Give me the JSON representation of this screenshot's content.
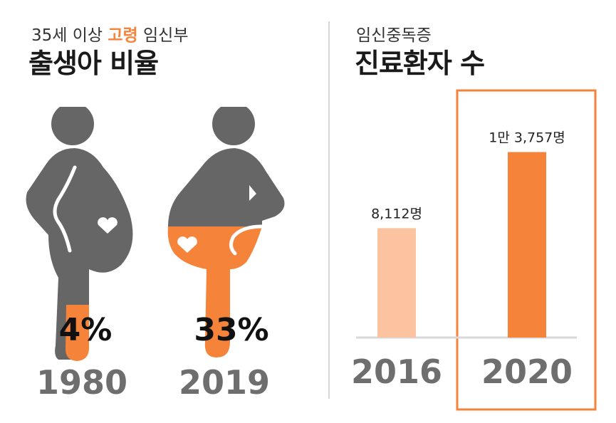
{
  "left": {
    "subtitle_pre": "35세 이상 ",
    "subtitle_hl": "고령",
    "subtitle_post": " 임신부",
    "title": "출생아 비율",
    "figures": [
      {
        "year": "1980",
        "percent_label": "4%",
        "percent": 4
      },
      {
        "year": "2019",
        "percent_label": "33%",
        "percent": 33
      }
    ]
  },
  "right": {
    "subtitle": "임신중독증",
    "title": "진료환자 수"
  },
  "colors": {
    "accent": "#f5833a",
    "light": "#fbc3a0",
    "figure": "#666666"
  },
  "chart_data": {
    "type": "bar",
    "categories": [
      "2016",
      "2020"
    ],
    "values": [
      8112,
      13757
    ],
    "value_labels": [
      "8,112명",
      "1만 3,757명"
    ],
    "ylim": [
      0,
      15000
    ],
    "grid": false,
    "highlight": "2020"
  }
}
